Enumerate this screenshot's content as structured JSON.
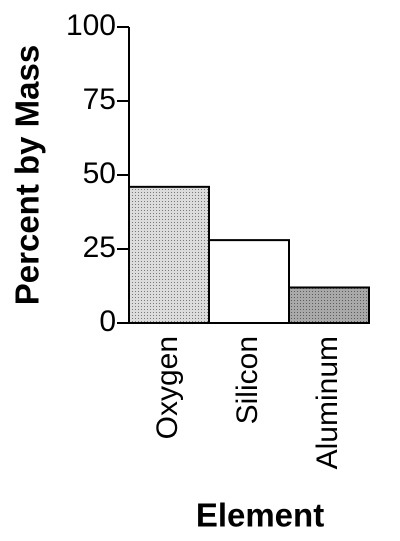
{
  "chart_data": {
    "type": "bar",
    "categories": [
      "Oxygen",
      "Silicon",
      "Aluminum"
    ],
    "values": [
      46,
      28,
      12
    ],
    "colors": [
      "#dcdcdc",
      "#ffffff",
      "#a9a9a9"
    ],
    "ylim": [
      0,
      100
    ],
    "yticks": [
      0,
      25,
      50,
      75,
      100
    ],
    "ylabel": "Percent by Mass",
    "xlabel": "Element"
  }
}
